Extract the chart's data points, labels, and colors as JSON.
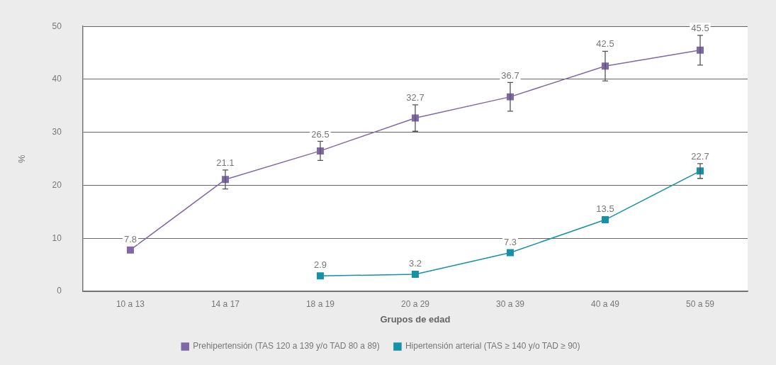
{
  "chart_data": {
    "type": "line",
    "xlabel": "Grupos de edad",
    "ylabel": "%",
    "categories": [
      "10 a 13",
      "14 a 17",
      "18 a 19",
      "20 a 29",
      "30 a 39",
      "40 a 49",
      "50 a 59"
    ],
    "series": [
      {
        "name": "Prehipertensión (TAS 120 a 139 y/o TAD 80 a 89)",
        "color": "#8068a8",
        "values": [
          7.8,
          21.1,
          26.5,
          32.7,
          36.7,
          42.5,
          45.5
        ],
        "errors": [
          null,
          1.8,
          1.8,
          2.5,
          2.7,
          2.8,
          2.8
        ]
      },
      {
        "name": "Hipertensión arterial (TAS ≥ 140 y/o TAD ≥ 90)",
        "color": "#1592a8",
        "values": [
          null,
          null,
          2.9,
          3.2,
          7.3,
          13.5,
          22.7
        ],
        "errors": [
          null,
          null,
          null,
          null,
          null,
          null,
          1.4
        ]
      }
    ],
    "ylim": [
      0,
      50
    ],
    "yticks": [
      0,
      10,
      20,
      30,
      40,
      50
    ],
    "grid": "y",
    "legend": "bottom",
    "marker": "square",
    "line_style": "solid",
    "data_labels": true
  }
}
